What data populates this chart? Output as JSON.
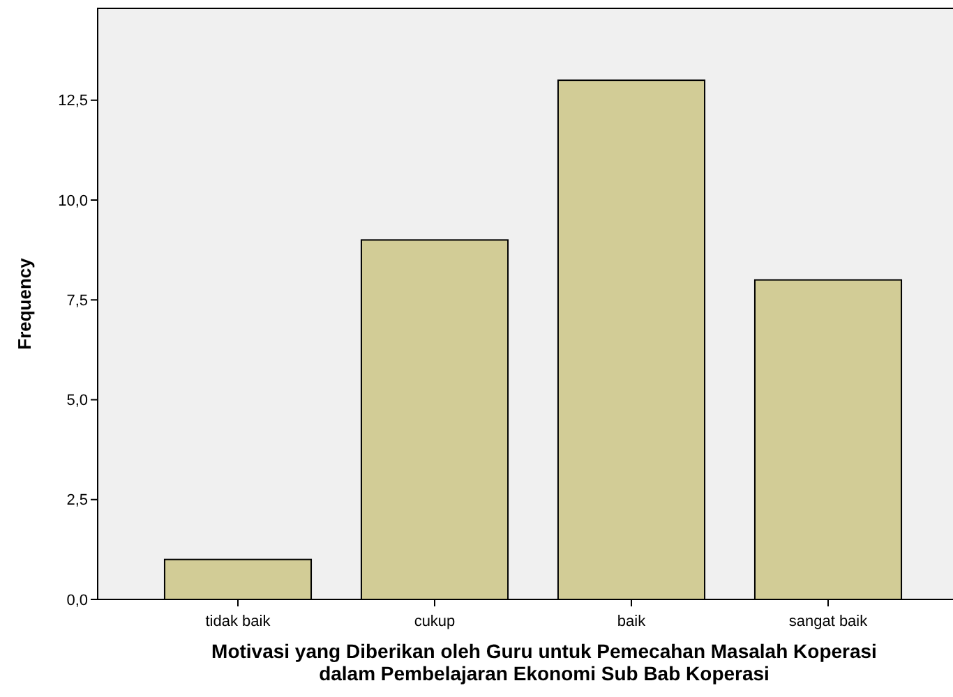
{
  "chart_data": {
    "type": "bar",
    "categories": [
      "tidak baik",
      "cukup",
      "baik",
      "sangat baik"
    ],
    "values": [
      1,
      9,
      13,
      8
    ],
    "color": "#d2cc96",
    "xlabel": "Motivasi yang Diberikan oleh Guru untuk Pemecahan Masalah Koperasi\ndalam Pembelajaran Ekonomi Sub Bab Koperasi",
    "ylabel": "Frequency",
    "ylim": [
      0,
      14.8
    ],
    "yticks": [
      {
        "value": 0,
        "label": "0,0"
      },
      {
        "value": 2.5,
        "label": "2,5"
      },
      {
        "value": 5,
        "label": "5,0"
      },
      {
        "value": 7.5,
        "label": "7,5"
      },
      {
        "value": 10,
        "label": "10,0"
      },
      {
        "value": 12.5,
        "label": "12,5"
      }
    ],
    "grid": false
  }
}
